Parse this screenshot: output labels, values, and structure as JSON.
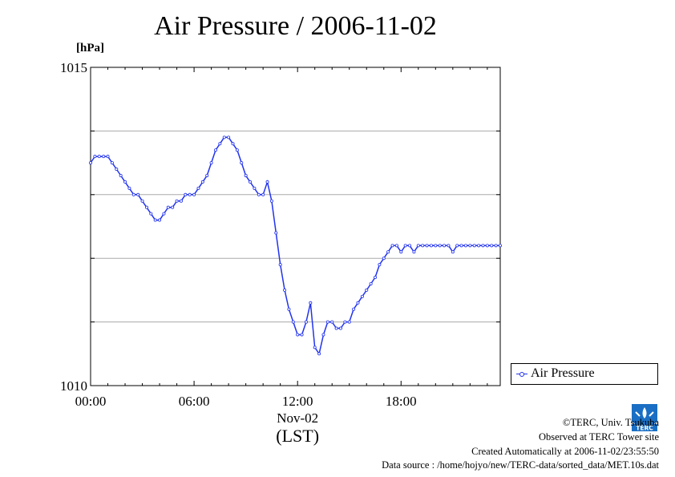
{
  "chart_data": {
    "type": "line",
    "title": "Air Pressure / 2006-11-02",
    "ylabel": "[hPa]",
    "xlabel": "(LST)",
    "date_label": "Nov-02",
    "ylim": [
      1010,
      1015
    ],
    "xlim": [
      0,
      23.75
    ],
    "y_ticks": [
      1010,
      1011,
      1012,
      1013,
      1014,
      1015
    ],
    "y_tick_labels": [
      "1010",
      "",
      "",
      "",
      "",
      "1015"
    ],
    "x_ticks": [
      0,
      6,
      12,
      18
    ],
    "x_tick_labels": [
      "00:00",
      "06:00",
      "12:00",
      "18:00"
    ],
    "grid": "horizontal",
    "legend": "outside-bottom-right",
    "colors": {
      "series": "#2233ee",
      "grid": "#aaaaaa"
    },
    "series": [
      {
        "name": "Air Pressure",
        "x": [
          0,
          0.25,
          0.5,
          0.75,
          1.0,
          1.25,
          1.5,
          1.75,
          2.0,
          2.25,
          2.5,
          2.75,
          3.0,
          3.25,
          3.5,
          3.75,
          4.0,
          4.25,
          4.5,
          4.75,
          5.0,
          5.25,
          5.5,
          5.75,
          6.0,
          6.25,
          6.5,
          6.75,
          7.0,
          7.25,
          7.5,
          7.75,
          8.0,
          8.25,
          8.5,
          8.75,
          9.0,
          9.25,
          9.5,
          9.75,
          10.0,
          10.25,
          10.5,
          10.75,
          11.0,
          11.25,
          11.5,
          11.75,
          12.0,
          12.25,
          12.5,
          12.75,
          13.0,
          13.25,
          13.5,
          13.75,
          14.0,
          14.25,
          14.5,
          14.75,
          15.0,
          15.25,
          15.5,
          15.75,
          16.0,
          16.25,
          16.5,
          16.75,
          17.0,
          17.25,
          17.5,
          17.75,
          18.0,
          18.25,
          18.5,
          18.75,
          19.0,
          19.25,
          19.5,
          19.75,
          20.0,
          20.25,
          20.5,
          20.75,
          21.0,
          21.25,
          21.5,
          21.75,
          22.0,
          22.25,
          22.5,
          22.75,
          23.0,
          23.25,
          23.5,
          23.75
        ],
        "values": [
          1013.5,
          1013.6,
          1013.6,
          1013.6,
          1013.6,
          1013.5,
          1013.4,
          1013.3,
          1013.2,
          1013.1,
          1013.0,
          1013.0,
          1012.9,
          1012.8,
          1012.7,
          1012.6,
          1012.6,
          1012.7,
          1012.8,
          1012.8,
          1012.9,
          1012.9,
          1013.0,
          1013.0,
          1013.0,
          1013.1,
          1013.2,
          1013.3,
          1013.5,
          1013.7,
          1013.8,
          1013.9,
          1013.9,
          1013.8,
          1013.7,
          1013.5,
          1013.3,
          1013.2,
          1013.1,
          1013.0,
          1013.0,
          1013.2,
          1012.9,
          1012.4,
          1011.9,
          1011.5,
          1011.2,
          1011.0,
          1010.8,
          1010.8,
          1011.0,
          1011.3,
          1010.6,
          1010.5,
          1010.8,
          1011.0,
          1011.0,
          1010.9,
          1010.9,
          1011.0,
          1011.0,
          1011.2,
          1011.3,
          1011.4,
          1011.5,
          1011.6,
          1011.7,
          1011.9,
          1012.0,
          1012.1,
          1012.2,
          1012.2,
          1012.1,
          1012.2,
          1012.2,
          1012.1,
          1012.2,
          1012.2,
          1012.2,
          1012.2,
          1012.2,
          1012.2,
          1012.2,
          1012.2,
          1012.1,
          1012.2,
          1012.2,
          1012.2,
          1012.2,
          1012.2,
          1012.2,
          1012.2,
          1012.2,
          1012.2,
          1012.2,
          1012.2
        ]
      }
    ]
  },
  "footer": {
    "copyright": "©TERC, Univ. Tsukuba",
    "observed": "Observed at TERC Tower site",
    "created": "Created Automatically at 2006-11-02/23:55:50",
    "source": "Data source : /home/hojyo/new/TERC-data/sorted_data/MET.10s.dat"
  },
  "logo": {
    "text": "TERC",
    "color": "#1a6fc4"
  }
}
